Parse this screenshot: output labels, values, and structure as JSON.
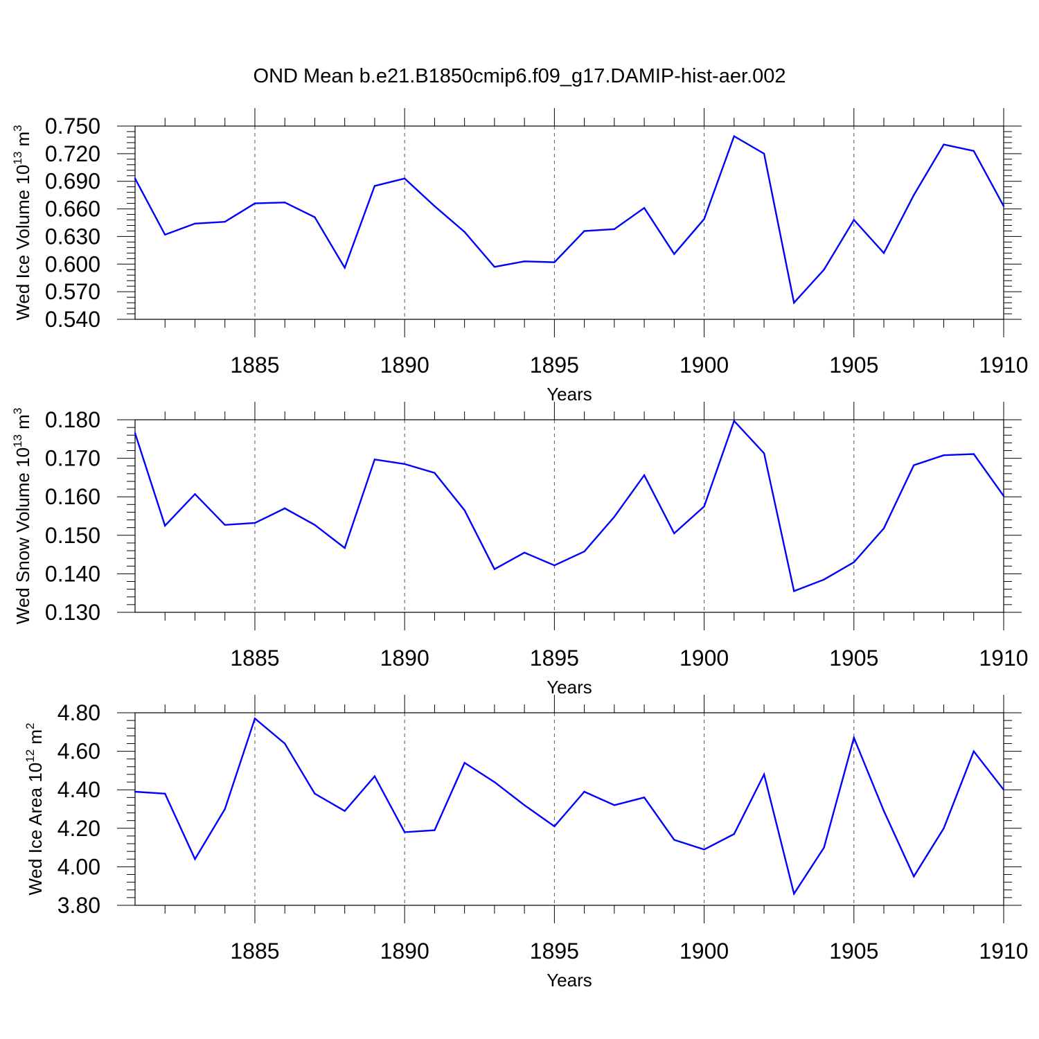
{
  "figure": {
    "title": "OND Mean b.e21.B1850cmip6.f09_g17.DAMIP-hist-aer.002",
    "background": "#ffffff",
    "line_color": "#0000ff",
    "grid_color": "#555555"
  },
  "chart_data": [
    {
      "type": "line",
      "title": "OND Mean b.e21.B1850cmip6.f09_g17.DAMIP-hist-aer.002",
      "ylabel": {
        "main": "Wed Ice Volume 10",
        "exp": "13",
        "unit": " m",
        "unit_exp": "3"
      },
      "xlabel": "Years",
      "xlim": [
        1881,
        1910
      ],
      "ylim": [
        0.54,
        0.75
      ],
      "yticks": [
        0.54,
        0.57,
        0.6,
        0.63,
        0.66,
        0.69,
        0.72,
        0.75
      ],
      "ytick_labels": [
        "0.540",
        "0.570",
        "0.600",
        "0.630",
        "0.660",
        "0.690",
        "0.720",
        "0.750"
      ],
      "ytick_minor": 0.006,
      "xticks": [
        1885,
        1890,
        1895,
        1900,
        1905,
        1910
      ],
      "xtick_labels": [
        "1885",
        "1890",
        "1895",
        "1900",
        "1905",
        "1910"
      ],
      "grid": "vertical dashed at major x ticks",
      "x": [
        1881,
        1882,
        1883,
        1884,
        1885,
        1886,
        1887,
        1888,
        1889,
        1890,
        1891,
        1892,
        1893,
        1894,
        1895,
        1896,
        1897,
        1898,
        1899,
        1900,
        1901,
        1902,
        1903,
        1904,
        1905,
        1906,
        1907,
        1908,
        1909,
        1910
      ],
      "values": [
        0.693,
        0.632,
        0.644,
        0.646,
        0.666,
        0.667,
        0.651,
        0.596,
        0.685,
        0.693,
        0.663,
        0.635,
        0.597,
        0.603,
        0.602,
        0.636,
        0.638,
        0.661,
        0.611,
        0.649,
        0.739,
        0.72,
        0.558,
        0.594,
        0.648,
        0.612,
        0.675,
        0.73,
        0.723,
        0.663
      ]
    },
    {
      "type": "line",
      "ylabel": {
        "main": "Wed Snow Volume 10",
        "exp": "13",
        "unit": " m",
        "unit_exp": "3"
      },
      "xlabel": "Years",
      "xlim": [
        1881,
        1910
      ],
      "ylim": [
        0.13,
        0.18
      ],
      "yticks": [
        0.13,
        0.14,
        0.15,
        0.16,
        0.17,
        0.18
      ],
      "ytick_labels": [
        "0.130",
        "0.140",
        "0.150",
        "0.160",
        "0.170",
        "0.180"
      ],
      "ytick_minor": 0.002,
      "xticks": [
        1885,
        1890,
        1895,
        1900,
        1905,
        1910
      ],
      "xtick_labels": [
        "1885",
        "1890",
        "1895",
        "1900",
        "1905",
        "1910"
      ],
      "grid": "vertical dashed at major x ticks",
      "x": [
        1881,
        1882,
        1883,
        1884,
        1885,
        1886,
        1887,
        1888,
        1889,
        1890,
        1891,
        1892,
        1893,
        1894,
        1895,
        1896,
        1897,
        1898,
        1899,
        1900,
        1901,
        1902,
        1903,
        1904,
        1905,
        1906,
        1907,
        1908,
        1909,
        1910
      ],
      "values": [
        0.1765,
        0.1525,
        0.1607,
        0.1527,
        0.1532,
        0.157,
        0.1527,
        0.1467,
        0.1697,
        0.1685,
        0.1662,
        0.1565,
        0.1412,
        0.1455,
        0.1422,
        0.1458,
        0.1548,
        0.1656,
        0.1505,
        0.1575,
        0.1797,
        0.1713,
        0.1355,
        0.1385,
        0.143,
        0.1518,
        0.1682,
        0.1708,
        0.1711,
        0.1602
      ]
    },
    {
      "type": "line",
      "ylabel": {
        "main": "Wed Ice Area 10",
        "exp": "12",
        "unit": " m",
        "unit_exp": "2"
      },
      "xlabel": "Years",
      "xlim": [
        1881,
        1910
      ],
      "ylim": [
        3.8,
        4.8
      ],
      "yticks": [
        3.8,
        4.0,
        4.2,
        4.4,
        4.6,
        4.8
      ],
      "ytick_labels": [
        "3.80",
        "4.00",
        "4.20",
        "4.40",
        "4.60",
        "4.80"
      ],
      "ytick_minor": 0.04,
      "xticks": [
        1885,
        1890,
        1895,
        1900,
        1905,
        1910
      ],
      "xtick_labels": [
        "1885",
        "1890",
        "1895",
        "1900",
        "1905",
        "1910"
      ],
      "grid": "vertical dashed at major x ticks",
      "x": [
        1881,
        1882,
        1883,
        1884,
        1885,
        1886,
        1887,
        1888,
        1889,
        1890,
        1891,
        1892,
        1893,
        1894,
        1895,
        1896,
        1897,
        1898,
        1899,
        1900,
        1901,
        1902,
        1903,
        1904,
        1905,
        1906,
        1907,
        1908,
        1909,
        1910
      ],
      "values": [
        4.39,
        4.38,
        4.04,
        4.3,
        4.77,
        4.64,
        4.38,
        4.29,
        4.47,
        4.18,
        4.19,
        4.54,
        4.44,
        4.32,
        4.21,
        4.39,
        4.32,
        4.36,
        4.14,
        4.09,
        4.17,
        4.48,
        3.86,
        4.1,
        4.67,
        4.29,
        3.95,
        4.2,
        4.6,
        4.4
      ]
    }
  ]
}
